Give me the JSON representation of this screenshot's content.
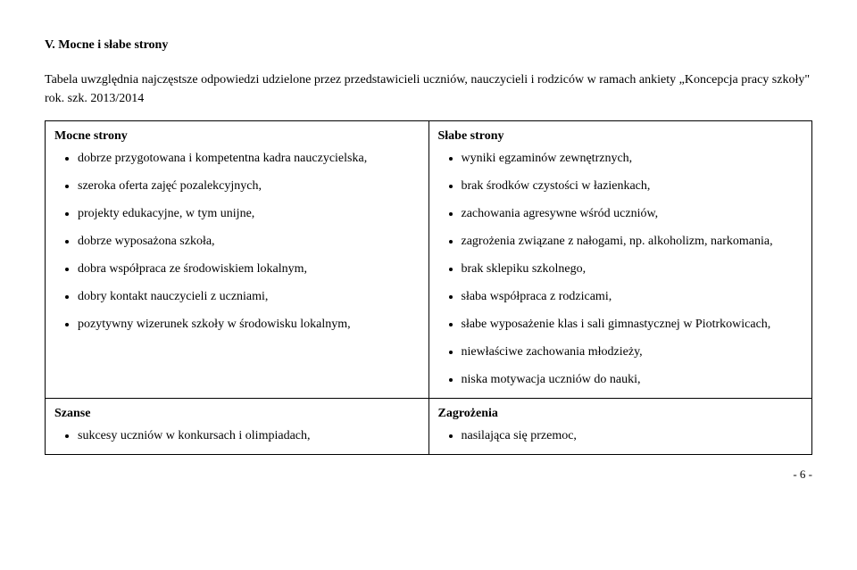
{
  "heading": "V. Mocne i słabe strony",
  "intro": "Tabela uwzględnia najczęstsze odpowiedzi udzielone przez przedstawicieli uczniów, nauczycieli i rodziców w ramach ankiety „Koncepcja pracy szkoły\" rok. szk. 2013/2014",
  "table": {
    "topLeft": {
      "title": "Mocne strony",
      "items": [
        "dobrze przygotowana i kompetentna kadra nauczycielska,",
        "szeroka oferta zajęć pozalekcyjnych,",
        "projekty edukacyjne, w tym unijne,",
        "dobrze wyposażona szkoła,",
        "dobra współpraca ze środowiskiem lokalnym,",
        "dobry kontakt nauczycieli z uczniami,",
        "pozytywny wizerunek szkoły w środowisku lokalnym,"
      ]
    },
    "topRight": {
      "title": "Słabe strony",
      "items": [
        "wyniki egzaminów zewnętrznych,",
        "brak środków czystości w łazienkach,",
        "zachowania agresywne wśród uczniów,",
        "zagrożenia związane z nałogami, np. alkoholizm, narkomania,",
        "brak sklepiku szkolnego,",
        "słaba współpraca z rodzicami,",
        "słabe wyposażenie klas i sali gimnastycznej w Piotrkowicach,",
        "niewłaściwe zachowania młodzieży,",
        "niska motywacja uczniów do nauki,"
      ]
    },
    "bottomLeft": {
      "title": "Szanse",
      "items": [
        "sukcesy uczniów w konkursach i olimpiadach,"
      ]
    },
    "bottomRight": {
      "title": "Zagrożenia",
      "items": [
        "nasilająca się przemoc,"
      ]
    }
  },
  "pagenum": "- 6 -"
}
